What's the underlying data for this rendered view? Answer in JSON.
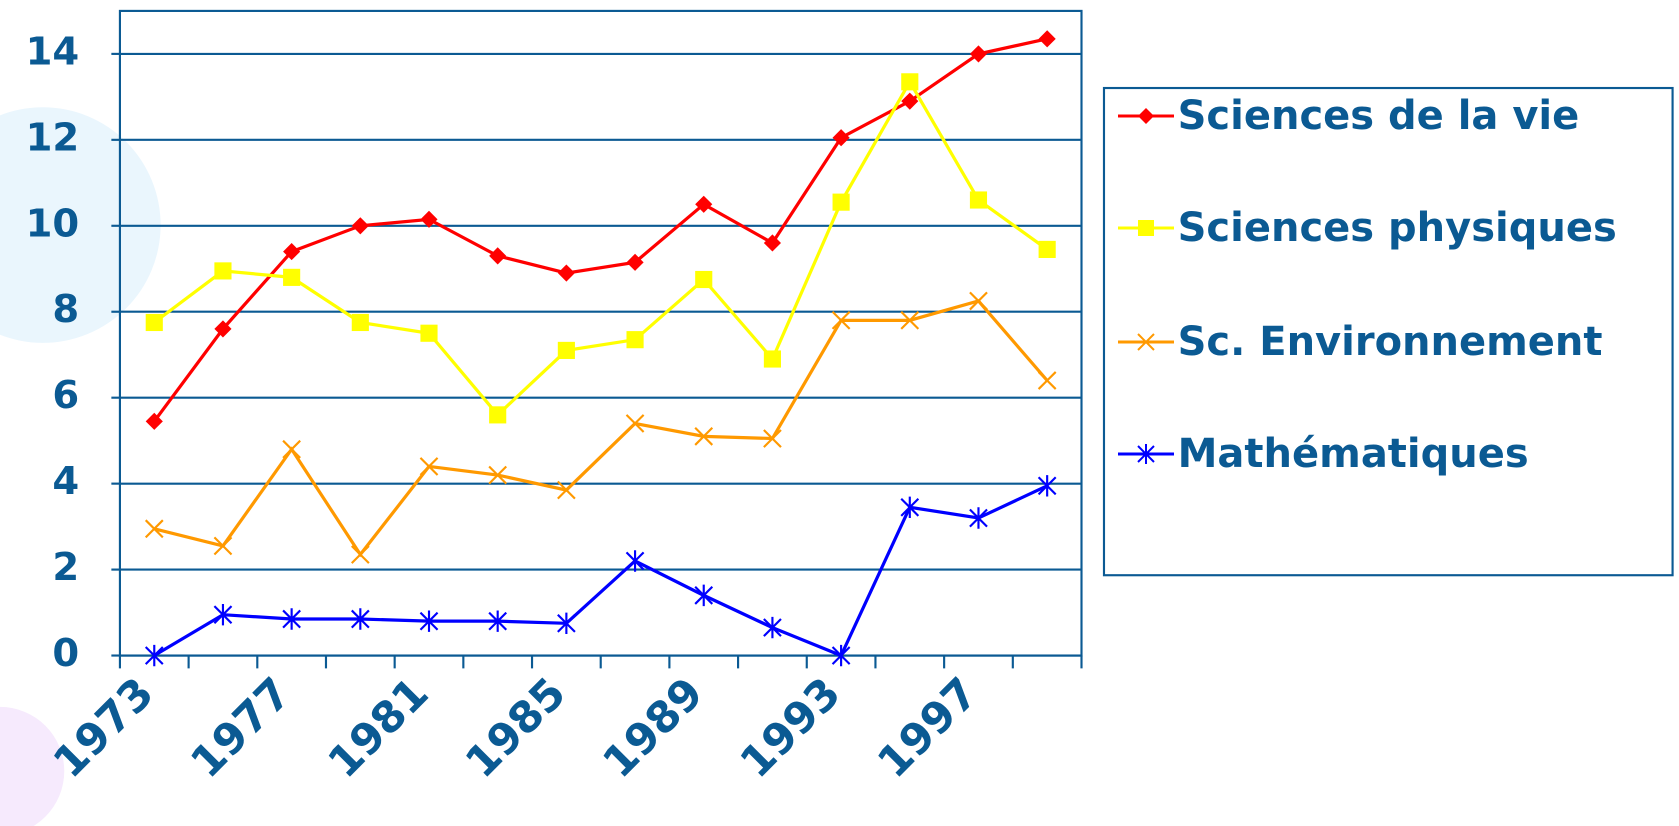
{
  "chart_data": {
    "type": "line",
    "categories": [
      "1973",
      null,
      "1977",
      null,
      "1981",
      null,
      "1985",
      null,
      "1989",
      null,
      "1993",
      null,
      "1997",
      null
    ],
    "series": [
      {
        "name": "Sciences de la vie",
        "color": "#ff0000",
        "marker": "diamond",
        "values": [
          5.45,
          7.6,
          9.4,
          10.0,
          10.15,
          9.3,
          8.9,
          9.15,
          10.5,
          9.6,
          12.05,
          12.9,
          14.0,
          14.35
        ]
      },
      {
        "name": "Sciences physiques",
        "color": "#ffff00",
        "marker": "square",
        "values": [
          7.75,
          8.95,
          8.8,
          7.75,
          7.5,
          5.6,
          7.1,
          7.35,
          8.75,
          6.9,
          10.55,
          13.35,
          10.6,
          9.45
        ]
      },
      {
        "name": "Sc. Environnement",
        "color": "#ff9900",
        "marker": "x",
        "values": [
          2.95,
          2.55,
          4.8,
          2.35,
          4.4,
          4.2,
          3.85,
          5.4,
          5.1,
          5.05,
          7.8,
          7.8,
          8.25,
          6.4
        ]
      },
      {
        "name": "Mathématiques",
        "color": "#0000ff",
        "marker": "star",
        "values": [
          0,
          0.95,
          0.85,
          0.85,
          0.8,
          0.8,
          0.75,
          2.2,
          1.4,
          0.65,
          0,
          3.45,
          3.2,
          3.95
        ]
      }
    ],
    "ylim": [
      0,
      15
    ],
    "yticks": [
      0,
      2,
      4,
      6,
      8,
      10,
      12,
      14
    ],
    "grid": true,
    "legend": "right"
  }
}
